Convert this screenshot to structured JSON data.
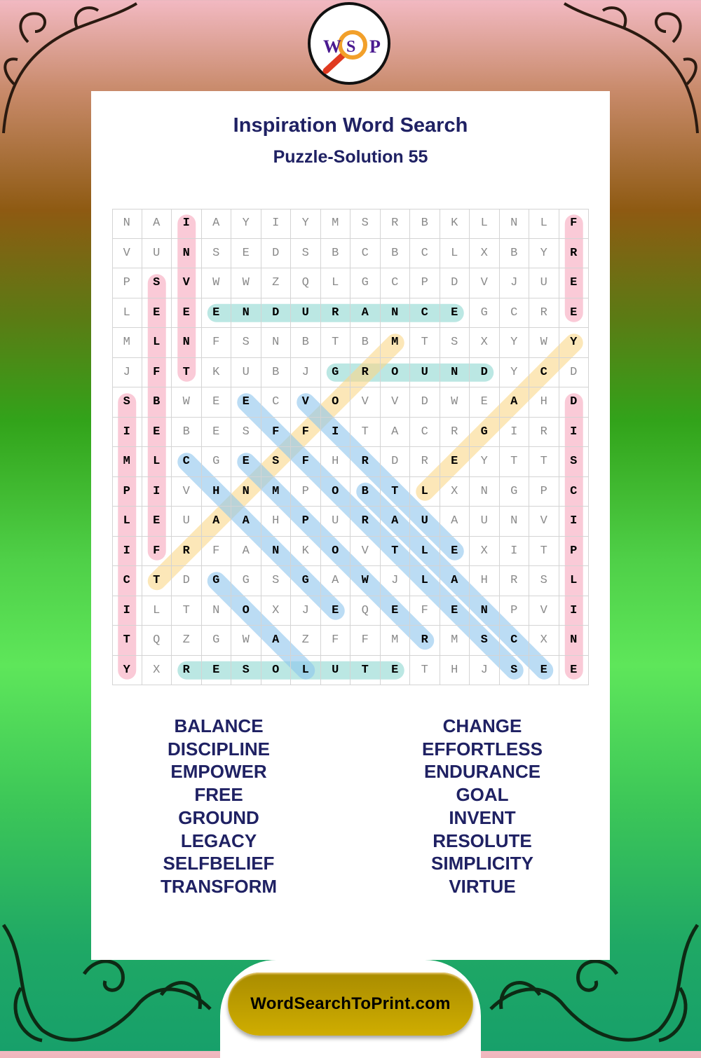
{
  "logo": {
    "letters": [
      "W",
      "S",
      "P"
    ]
  },
  "header": {
    "title": "Inspiration Word Search",
    "subtitle": "Puzzle-Solution 55"
  },
  "grid": [
    "NAIAYIYMSRBKLNLF",
    "VUNSEDSBCBCLXBYR",
    "PSVWWZQLGCPDVJUE",
    "LEEENDURANCEGCRE",
    "MLNFSNBTBMTSXYWY",
    "JFTKUBJGROUNDYCD",
    "SBWEECVOVVDWEAHD",
    "IEBESFFITACRGIRI",
    "MLCGESFHRDREYTTS",
    "PIVHNMPOBTLXNGPC",
    "LEUAAHPURAUAUNVI",
    "IFRFANKOVTLEXITP",
    "CTDGGSGAWJLAHRSL",
    "ILTNOXJEQEFENPVI",
    "TQZGWAZFFMRMSCXN",
    "YXRESOLUTETHJSEE"
  ],
  "solutions": [
    {
      "word": "INVENT",
      "start": [
        0,
        2
      ],
      "end": [
        5,
        2
      ],
      "color": "pink"
    },
    {
      "word": "SELFBELIEF",
      "start": [
        2,
        1
      ],
      "end": [
        11,
        1
      ],
      "color": "pink"
    },
    {
      "word": "SIMPLICITY",
      "start": [
        6,
        0
      ],
      "end": [
        15,
        0
      ],
      "color": "pink"
    },
    {
      "word": "FREE",
      "start": [
        0,
        15
      ],
      "end": [
        3,
        15
      ],
      "color": "pink"
    },
    {
      "word": "DISCIPLINE",
      "start": [
        6,
        15
      ],
      "end": [
        15,
        15
      ],
      "color": "pink"
    },
    {
      "word": "ENDURANCE",
      "start": [
        3,
        3
      ],
      "end": [
        3,
        11
      ],
      "color": "teal"
    },
    {
      "word": "GROUND",
      "start": [
        5,
        7
      ],
      "end": [
        5,
        12
      ],
      "color": "teal"
    },
    {
      "word": "RESOLUTE",
      "start": [
        15,
        2
      ],
      "end": [
        15,
        9
      ],
      "color": "teal"
    },
    {
      "word": "TRANSFORM",
      "start": [
        12,
        1
      ],
      "end": [
        4,
        9
      ],
      "color": "yellow"
    },
    {
      "word": "LEGACY",
      "start": [
        9,
        10
      ],
      "end": [
        4,
        15
      ],
      "color": "yellow"
    },
    {
      "word": "CHANGE",
      "start": [
        8,
        2
      ],
      "end": [
        13,
        7
      ],
      "color": "blue"
    },
    {
      "word": "GOAL",
      "start": [
        12,
        3
      ],
      "end": [
        15,
        6
      ],
      "color": "blue"
    },
    {
      "word": "EFFORTLESS",
      "start": [
        6,
        4
      ],
      "end": [
        15,
        13
      ],
      "color": "blue"
    },
    {
      "word": "EMPOWER",
      "start": [
        8,
        4
      ],
      "end": [
        14,
        10
      ],
      "color": "blue"
    },
    {
      "word": "VIRTUE",
      "start": [
        6,
        6
      ],
      "end": [
        11,
        11
      ],
      "color": "blue"
    },
    {
      "word": "BALANCE",
      "start": [
        9,
        8
      ],
      "end": [
        15,
        14
      ],
      "color": "blue"
    }
  ],
  "colors": {
    "pink": "#f7a8bd",
    "teal": "#8fd8d2",
    "yellow": "#fbd88a",
    "blue": "#8ec6ee",
    "title": "#1f2163",
    "footer_gold": "#c4a400"
  },
  "word_list": {
    "left": [
      "BALANCE",
      "DISCIPLINE",
      "EMPOWER",
      "FREE",
      "GROUND",
      "LEGACY",
      "SELFBELIEF",
      "TRANSFORM"
    ],
    "right": [
      "CHANGE",
      "EFFORTLESS",
      "ENDURANCE",
      "GOAL",
      "INVENT",
      "RESOLUTE",
      "SIMPLICITY",
      "VIRTUE"
    ]
  },
  "footer": {
    "site": "WordSearchToPrint.com"
  }
}
